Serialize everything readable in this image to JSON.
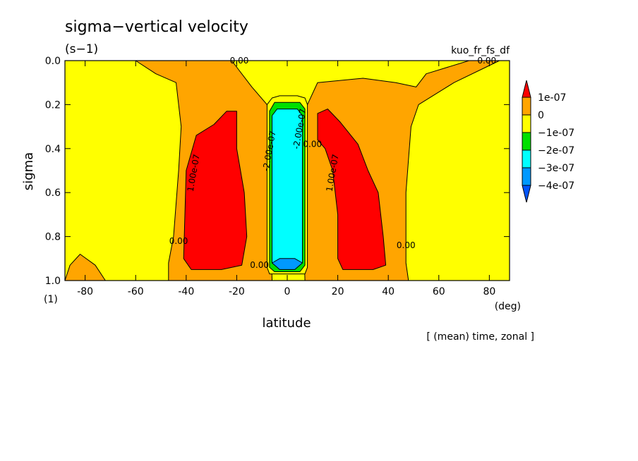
{
  "chart_data": {
    "type": "heatmap",
    "title": "sigma−vertical velocity",
    "units": "(s−1)",
    "run_label": "kuo_fr_fs_df",
    "xlabel": "latitude",
    "x_unit": "(deg)",
    "ylabel": "sigma",
    "y_unit": "(1)",
    "footer": "[ (mean) time, zonal ]",
    "xlim": [
      -88,
      88
    ],
    "ylim": [
      0.0,
      1.0
    ],
    "y_inverted": true,
    "x_ticks": [
      "-80",
      "-60",
      "-40",
      "-20",
      "0",
      "20",
      "40",
      "60",
      "80"
    ],
    "y_ticks": [
      "0.0",
      "0.2",
      "0.4",
      "0.6",
      "0.8",
      "1.0"
    ],
    "colorbar": {
      "levels": [
        -4e-07,
        -3e-07,
        -2e-07,
        -1e-07,
        0,
        1e-07
      ],
      "labels": [
        "1e-07",
        "0",
        "−1e-07",
        "−2e-07",
        "−3e-07",
        "−4e-07"
      ],
      "colors": {
        "above_1e-07": "#ff0000",
        "0_to_1e-07": "#ffa500",
        "m1e-07_to_0": "#ffff00",
        "m2e-07_to_m1e-07": "#00e000",
        "m3e-07_to_m2e-07": "#00ffff",
        "m4e-07_to_m3e-07": "#0099ff",
        "below_m4e-07": "#0055ff"
      }
    },
    "contour_labels": [
      {
        "text": "0.00",
        "lat": -43,
        "sigma": 0.82
      },
      {
        "text": "0.00",
        "lat": -11,
        "sigma": 0.93
      },
      {
        "text": "0.00",
        "lat": 47,
        "sigma": 0.84
      },
      {
        "text": "0.00",
        "lat": 10,
        "sigma": 0.38
      },
      {
        "text": "0.00",
        "lat": -19,
        "sigma": 0.0
      },
      {
        "text": "0.00",
        "lat": 79,
        "sigma": 0.0
      },
      {
        "text": "1.00e-07",
        "lat": -36,
        "sigma": 0.5
      },
      {
        "text": "1.00e-07",
        "lat": 19,
        "sigma": 0.5
      },
      {
        "text": "-2.00e-07",
        "lat": -6,
        "sigma": 0.4
      },
      {
        "text": "-2.00e-07",
        "lat": 6,
        "sigma": 0.3
      }
    ],
    "regions": [
      {
        "value_band": "0_to_1e-07",
        "polygon": [
          [
            -88,
            1.0
          ],
          [
            -86,
            0.93
          ],
          [
            -82,
            0.88
          ],
          [
            -76,
            0.93
          ],
          [
            -72,
            1.0
          ]
        ]
      },
      {
        "value_band": "0_to_1e-07",
        "polygon": [
          [
            -60,
            0.0
          ],
          [
            -52,
            0.06
          ],
          [
            -44,
            0.1
          ],
          [
            -42,
            0.3
          ],
          [
            -43,
            0.5
          ],
          [
            -45,
            0.8
          ],
          [
            -47,
            0.92
          ],
          [
            -47,
            1.0
          ],
          [
            -6,
            1.0
          ],
          [
            -7,
            0.6
          ],
          [
            -8,
            0.2
          ],
          [
            -14,
            0.12
          ],
          [
            -22,
            0.0
          ]
        ]
      },
      {
        "value_band": "0_to_1e-07",
        "polygon": [
          [
            7,
            1.0
          ],
          [
            6,
            0.6
          ],
          [
            8,
            0.2
          ],
          [
            12,
            0.1
          ],
          [
            30,
            0.08
          ],
          [
            43,
            0.1
          ],
          [
            51,
            0.12
          ],
          [
            55,
            0.06
          ],
          [
            72,
            0.0
          ],
          [
            84,
            0.0
          ],
          [
            66,
            0.1
          ],
          [
            52,
            0.2
          ],
          [
            49,
            0.3
          ],
          [
            47,
            0.6
          ],
          [
            47,
            0.92
          ],
          [
            48,
            1.0
          ]
        ]
      },
      {
        "value_band": "above_1e-07",
        "polygon": [
          [
            -41,
            0.9
          ],
          [
            -40,
            0.5
          ],
          [
            -36,
            0.34
          ],
          [
            -29,
            0.29
          ],
          [
            -24,
            0.23
          ],
          [
            -20,
            0.23
          ],
          [
            -20,
            0.4
          ],
          [
            -17,
            0.6
          ],
          [
            -16,
            0.8
          ],
          [
            -18,
            0.93
          ],
          [
            -26,
            0.95
          ],
          [
            -38,
            0.95
          ]
        ]
      },
      {
        "value_band": "above_1e-07",
        "polygon": [
          [
            12,
            0.24
          ],
          [
            16,
            0.22
          ],
          [
            21,
            0.28
          ],
          [
            28,
            0.38
          ],
          [
            32,
            0.5
          ],
          [
            36,
            0.6
          ],
          [
            38,
            0.8
          ],
          [
            39,
            0.93
          ],
          [
            34,
            0.95
          ],
          [
            22,
            0.95
          ],
          [
            20,
            0.9
          ],
          [
            20,
            0.7
          ],
          [
            18,
            0.5
          ],
          [
            15,
            0.4
          ],
          [
            12,
            0.36
          ]
        ]
      },
      {
        "value_band": "m1e-07_to_0",
        "polygon": [
          [
            -8,
            0.2
          ],
          [
            -6,
            0.17
          ],
          [
            -3,
            0.16
          ],
          [
            4,
            0.16
          ],
          [
            7,
            0.17
          ],
          [
            8,
            0.2
          ],
          [
            8,
            0.94
          ],
          [
            7,
            0.97
          ],
          [
            -7,
            0.97
          ],
          [
            -8,
            0.94
          ]
        ]
      },
      {
        "value_band": "m2e-07_to_m1e-07",
        "polygon": [
          [
            -7,
            0.23
          ],
          [
            -5,
            0.19
          ],
          [
            5,
            0.19
          ],
          [
            7,
            0.22
          ],
          [
            7,
            0.93
          ],
          [
            5,
            0.96
          ],
          [
            -5,
            0.96
          ],
          [
            -7,
            0.94
          ]
        ]
      },
      {
        "value_band": "m3e-07_to_m2e-07",
        "polygon": [
          [
            -6,
            0.25
          ],
          [
            -4,
            0.22
          ],
          [
            4,
            0.22
          ],
          [
            6,
            0.25
          ],
          [
            6,
            0.92
          ],
          [
            4,
            0.93
          ],
          [
            -4,
            0.93
          ],
          [
            -6,
            0.92
          ]
        ]
      },
      {
        "value_band": "m4e-07_to_m3e-07",
        "polygon": [
          [
            -6,
            0.92
          ],
          [
            -3,
            0.9
          ],
          [
            0,
            0.9
          ],
          [
            3,
            0.9
          ],
          [
            6,
            0.92
          ],
          [
            3,
            0.95
          ],
          [
            -3,
            0.95
          ]
        ]
      }
    ]
  }
}
